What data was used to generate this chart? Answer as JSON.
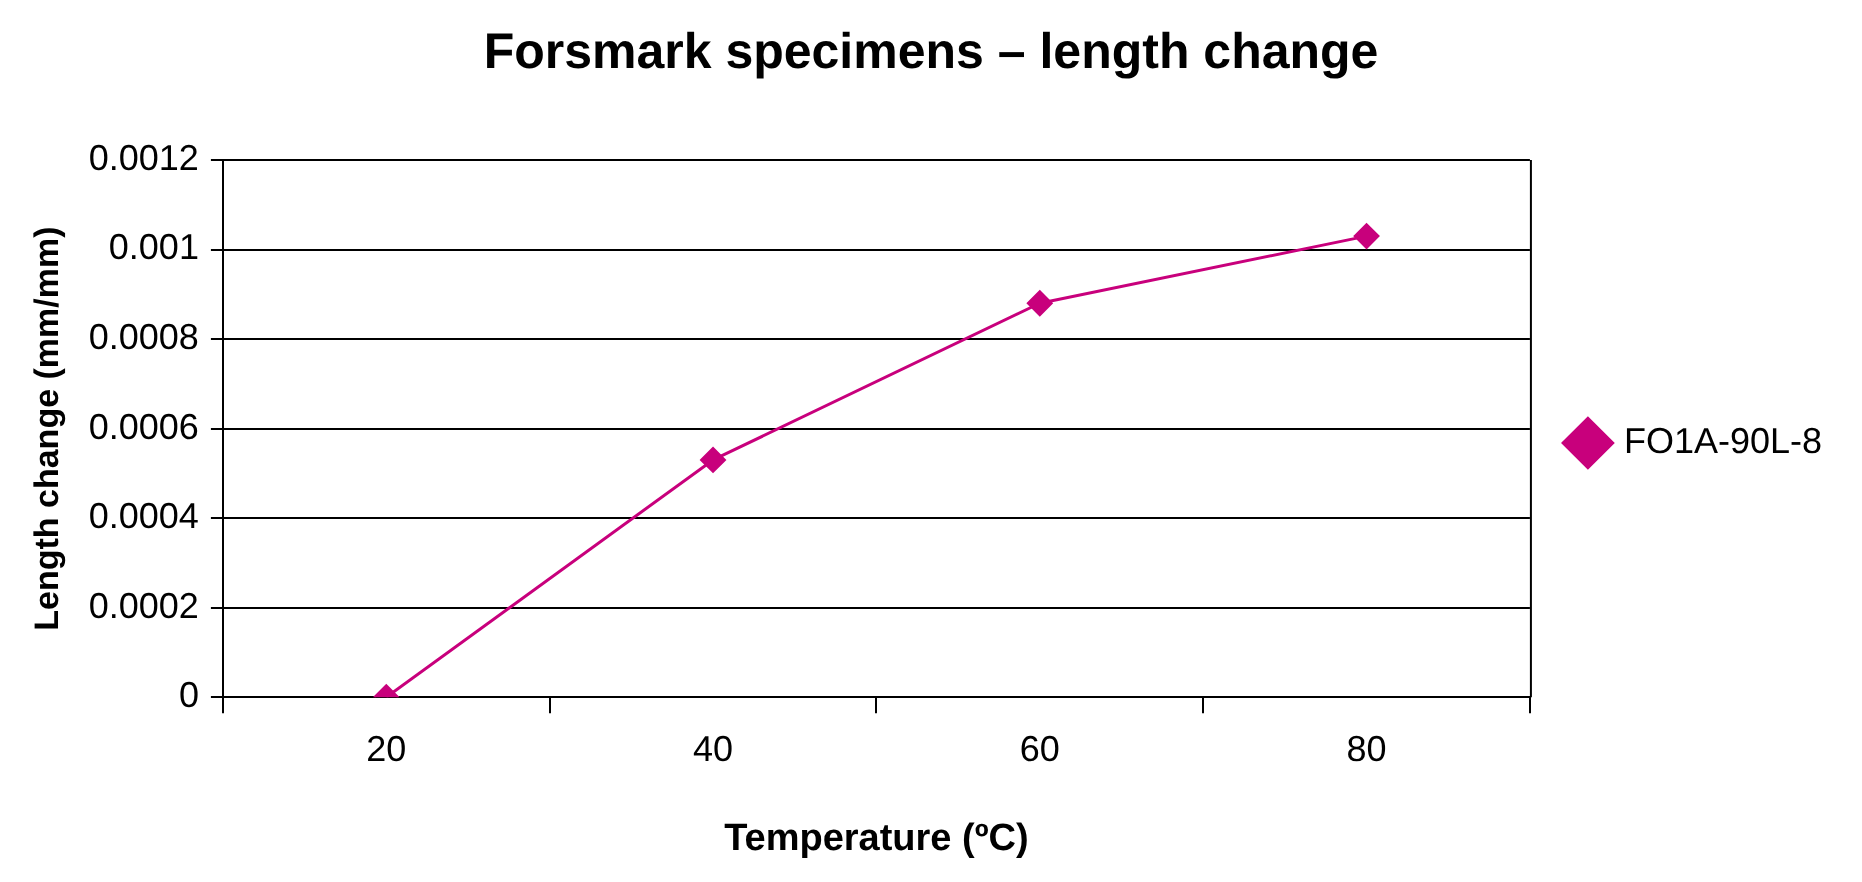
{
  "chart_data": {
    "type": "line",
    "title": "Forsmark specimens – length change",
    "xlabel": "Temperature (ºC)",
    "ylabel": "Length change (mm/mm)",
    "categories": [
      "20",
      "40",
      "60",
      "80"
    ],
    "series": [
      {
        "name": "FO1A-90L-8",
        "color": "#c8007c",
        "values": [
          0,
          0.00053,
          0.00088,
          0.00103
        ]
      }
    ],
    "ylim": [
      0,
      0.0012
    ],
    "yticks": [
      0,
      0.0002,
      0.0004,
      0.0006,
      0.0008,
      0.001,
      0.0012
    ],
    "grid": "y",
    "legend": "right",
    "marker": "diamond",
    "line_style": "solid"
  }
}
